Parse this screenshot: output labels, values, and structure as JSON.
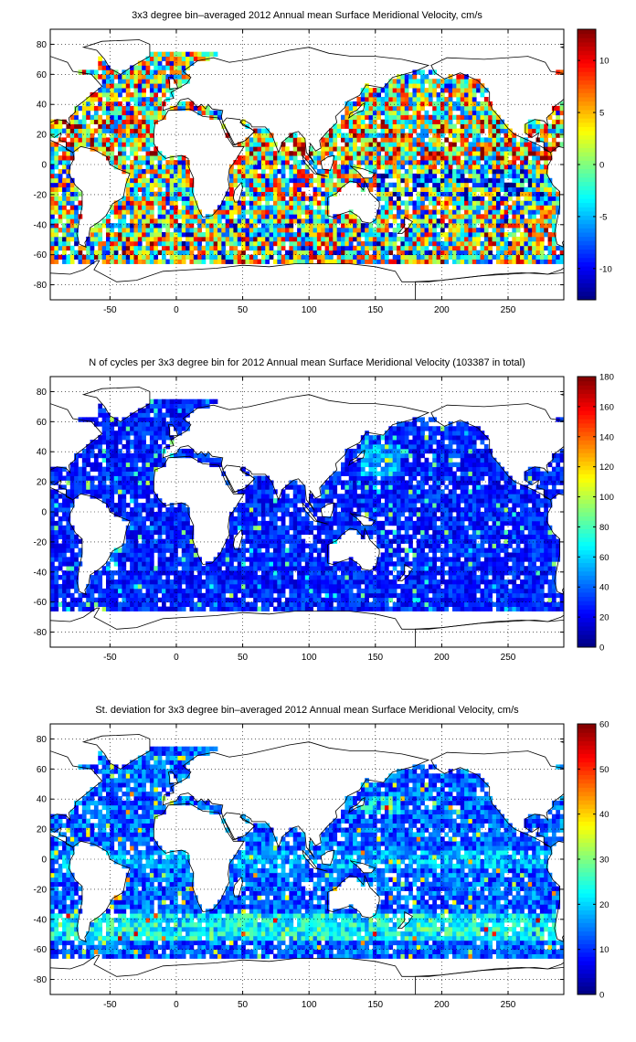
{
  "chart_data": [
    {
      "type": "heatmap",
      "title": "3x3 degree bin–averaged 2012 Annual mean Surface Meridional Velocity, cm/s",
      "xlim": [
        -95,
        292
      ],
      "ylim": [
        -90,
        90
      ],
      "x_ticks": [
        -50,
        0,
        50,
        100,
        150,
        200,
        250
      ],
      "y_ticks": [
        -80,
        -60,
        -40,
        -20,
        0,
        20,
        40,
        60,
        80
      ],
      "grid": true,
      "bin_size_deg": 3,
      "colormap": "jet",
      "color_range": [
        -13,
        13
      ],
      "colorbar_ticks": [
        -10,
        -5,
        0,
        5,
        10
      ],
      "field": "meridional_velocity"
    },
    {
      "type": "heatmap",
      "title": "N of cycles per 3x3 degree bin for 2012 Annual mean Surface Meridional Velocity (103387 in total)",
      "xlim": [
        -95,
        292
      ],
      "ylim": [
        -90,
        90
      ],
      "x_ticks": [
        -50,
        0,
        50,
        100,
        150,
        200,
        250
      ],
      "y_ticks": [
        -80,
        -60,
        -40,
        -20,
        0,
        20,
        40,
        60,
        80
      ],
      "grid": true,
      "bin_size_deg": 3,
      "colormap": "jet",
      "color_range": [
        0,
        180
      ],
      "colorbar_ticks": [
        0,
        20,
        40,
        60,
        80,
        100,
        120,
        140,
        160,
        180
      ],
      "field": "cycle_count"
    },
    {
      "type": "heatmap",
      "title": "St. deviation for 3x3 degree bin–averaged 2012 Annual mean Surface Meridional Velocity, cm/s",
      "xlim": [
        -95,
        292
      ],
      "ylim": [
        -90,
        90
      ],
      "x_ticks": [
        -50,
        0,
        50,
        100,
        150,
        200,
        250
      ],
      "y_ticks": [
        -80,
        -60,
        -40,
        -20,
        0,
        20,
        40,
        60,
        80
      ],
      "grid": true,
      "bin_size_deg": 3,
      "colormap": "jet",
      "color_range": [
        0,
        60
      ],
      "colorbar_ticks": [
        0,
        10,
        20,
        30,
        40,
        50,
        60
      ],
      "field": "standard_deviation"
    }
  ]
}
